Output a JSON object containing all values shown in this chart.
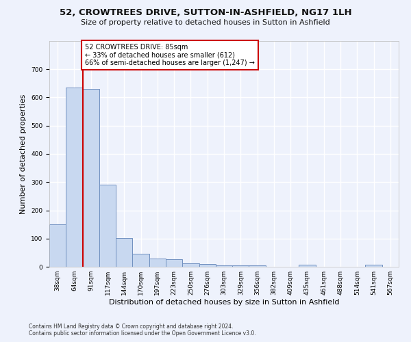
{
  "title1": "52, CROWTREES DRIVE, SUTTON-IN-ASHFIELD, NG17 1LH",
  "title2": "Size of property relative to detached houses in Sutton in Ashfield",
  "xlabel": "Distribution of detached houses by size in Sutton in Ashfield",
  "ylabel": "Number of detached properties",
  "footnote1": "Contains HM Land Registry data © Crown copyright and database right 2024.",
  "footnote2": "Contains public sector information licensed under the Open Government Licence v3.0.",
  "bin_labels": [
    "38sqm",
    "64sqm",
    "91sqm",
    "117sqm",
    "144sqm",
    "170sqm",
    "197sqm",
    "223sqm",
    "250sqm",
    "276sqm",
    "303sqm",
    "329sqm",
    "356sqm",
    "382sqm",
    "409sqm",
    "435sqm",
    "461sqm",
    "488sqm",
    "514sqm",
    "541sqm",
    "567sqm"
  ],
  "bar_values": [
    150,
    635,
    630,
    290,
    103,
    46,
    30,
    27,
    11,
    10,
    6,
    6,
    6,
    0,
    0,
    8,
    0,
    0,
    0,
    8,
    0
  ],
  "bar_color": "#c8d8f0",
  "bar_edge_color": "#7090c0",
  "annotation_text": "52 CROWTREES DRIVE: 85sqm\n← 33% of detached houses are smaller (612)\n66% of semi-detached houses are larger (1,247) →",
  "annotation_box_color": "#ffffff",
  "annotation_box_edge": "#cc0000",
  "line_color": "#cc0000",
  "line_x_index": 2.0,
  "ylim": [
    0,
    800
  ],
  "yticks": [
    0,
    100,
    200,
    300,
    400,
    500,
    600,
    700
  ],
  "bg_color": "#eef2fc",
  "grid_color": "#ffffff",
  "title1_fontsize": 9.5,
  "title2_fontsize": 8,
  "ylabel_fontsize": 8,
  "xlabel_fontsize": 8,
  "tick_fontsize": 6.5,
  "annot_fontsize": 7,
  "footnote_fontsize": 5.5
}
